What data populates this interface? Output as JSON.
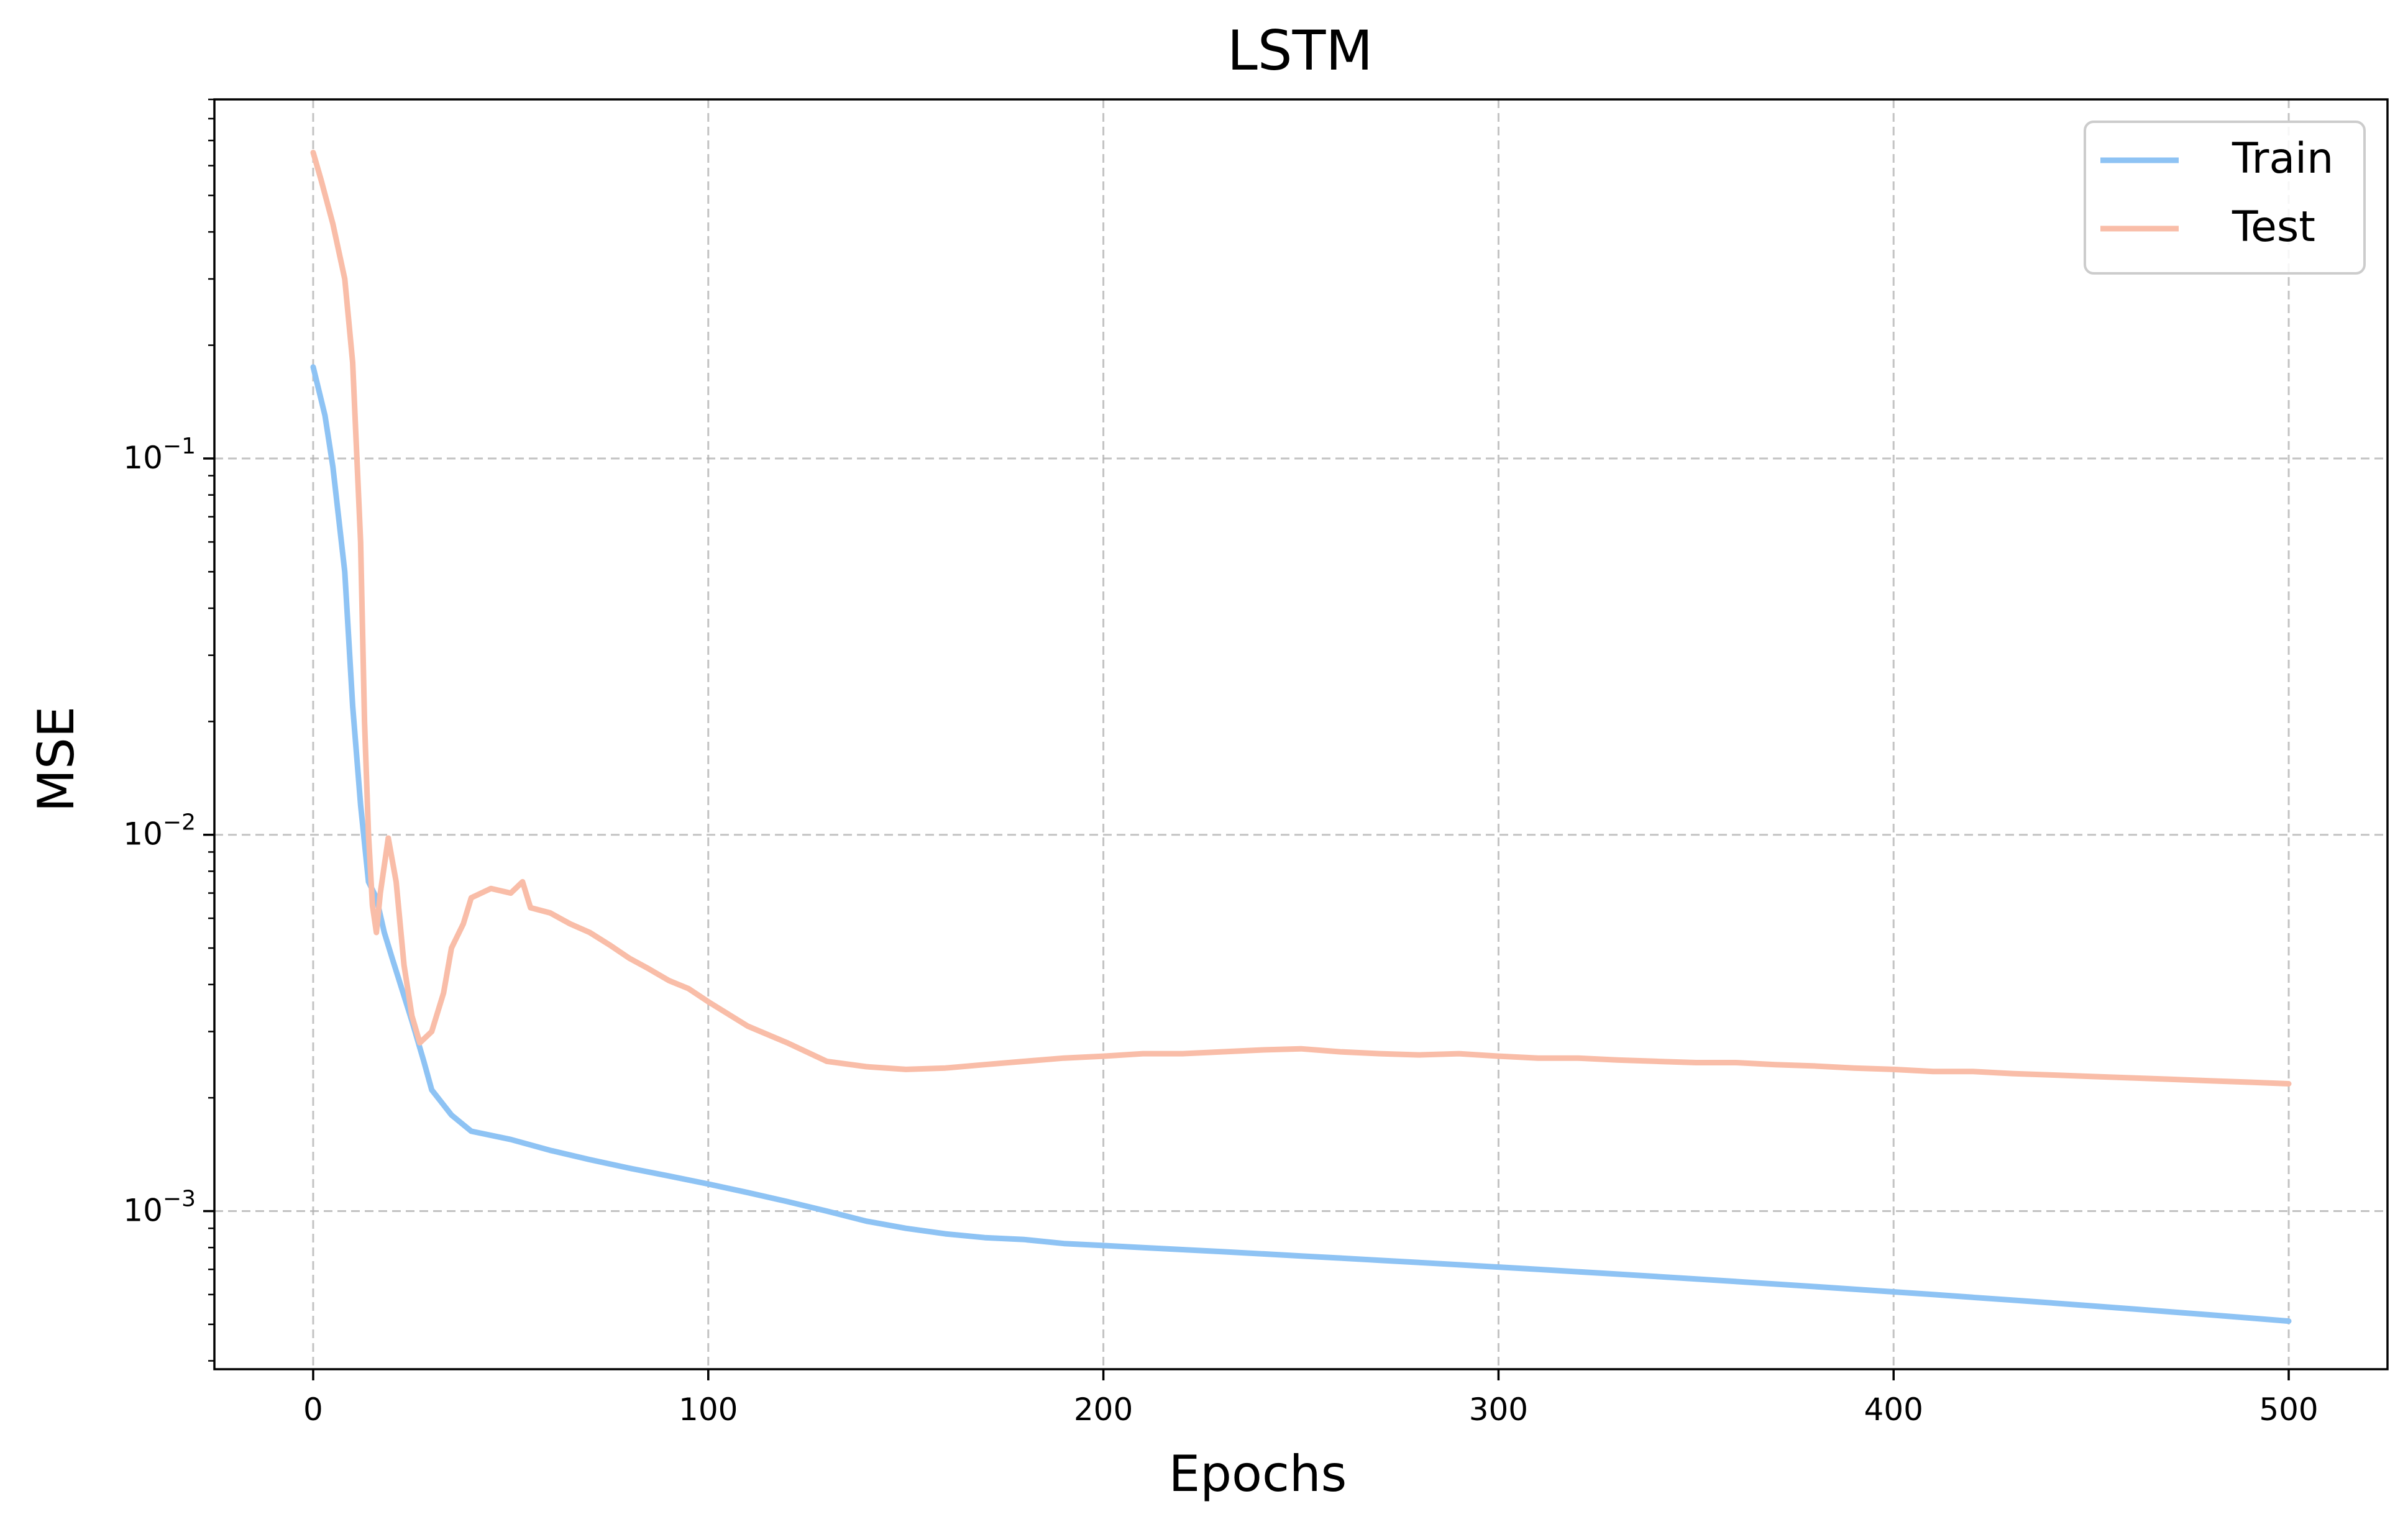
{
  "chart_data": {
    "type": "line",
    "title": "LSTM",
    "xlabel": "Epochs",
    "ylabel": "MSE",
    "xscale": "linear",
    "yscale": "log",
    "xlim": [
      -25,
      525
    ],
    "ylim": [
      0.00038,
      0.9
    ],
    "grid": true,
    "legend_position": "top-right",
    "x_ticks": [
      {
        "value": 0,
        "label": "0"
      },
      {
        "value": 100,
        "label": "100"
      },
      {
        "value": 200,
        "label": "200"
      },
      {
        "value": 300,
        "label": "300"
      },
      {
        "value": 400,
        "label": "400"
      },
      {
        "value": 500,
        "label": "500"
      }
    ],
    "y_ticks": [
      {
        "value": 0.1,
        "base": "10",
        "exp": "−1"
      },
      {
        "value": 0.01,
        "base": "10",
        "exp": "−2"
      },
      {
        "value": 0.001,
        "base": "10",
        "exp": "−3"
      }
    ],
    "series": [
      {
        "name": "Train",
        "color": "#8ec3f4",
        "x": [
          0,
          3,
          5,
          8,
          10,
          12,
          14,
          16,
          18,
          20,
          25,
          28,
          30,
          35,
          40,
          50,
          60,
          70,
          80,
          90,
          100,
          110,
          120,
          130,
          140,
          150,
          160,
          170,
          180,
          190,
          200,
          210,
          220,
          230,
          240,
          250,
          260,
          270,
          280,
          290,
          300,
          310,
          320,
          330,
          340,
          350,
          360,
          370,
          380,
          390,
          400,
          410,
          420,
          430,
          440,
          450,
          460,
          470,
          480,
          490,
          500
        ],
        "y": [
          0.175,
          0.13,
          0.095,
          0.05,
          0.022,
          0.012,
          0.0075,
          0.0068,
          0.0055,
          0.0047,
          0.0032,
          0.0025,
          0.0021,
          0.0018,
          0.00163,
          0.00155,
          0.00145,
          0.00137,
          0.0013,
          0.00124,
          0.00118,
          0.00112,
          0.00106,
          0.001,
          0.00094,
          0.0009,
          0.00087,
          0.00085,
          0.00084,
          0.00082,
          0.00081,
          0.0008,
          0.00079,
          0.00078,
          0.00077,
          0.00076,
          0.00075,
          0.00074,
          0.00073,
          0.00072,
          0.00071,
          0.0007,
          0.00069,
          0.00068,
          0.00067,
          0.00066,
          0.00065,
          0.00064,
          0.00063,
          0.00062,
          0.00061,
          0.0006,
          0.00059,
          0.00058,
          0.00057,
          0.00056,
          0.00055,
          0.00054,
          0.00053,
          0.00052,
          0.00051
        ]
      },
      {
        "name": "Test",
        "color": "#f9bda8",
        "x": [
          0,
          2,
          5,
          8,
          10,
          12,
          13,
          14,
          15,
          16,
          17,
          19,
          21,
          23,
          25,
          27,
          30,
          33,
          35,
          38,
          40,
          45,
          50,
          53,
          55,
          60,
          65,
          70,
          75,
          80,
          85,
          90,
          95,
          100,
          110,
          120,
          130,
          140,
          150,
          160,
          170,
          180,
          190,
          200,
          210,
          220,
          230,
          240,
          250,
          260,
          270,
          280,
          290,
          300,
          310,
          320,
          330,
          340,
          350,
          360,
          370,
          380,
          390,
          400,
          410,
          420,
          430,
          440,
          450,
          460,
          470,
          480,
          490,
          500
        ],
        "y": [
          0.65,
          0.55,
          0.42,
          0.3,
          0.18,
          0.06,
          0.02,
          0.01,
          0.0065,
          0.0055,
          0.007,
          0.0098,
          0.0075,
          0.0045,
          0.0033,
          0.0028,
          0.003,
          0.0038,
          0.005,
          0.0058,
          0.0068,
          0.0072,
          0.007,
          0.0075,
          0.0064,
          0.0062,
          0.0058,
          0.0055,
          0.0051,
          0.0047,
          0.0044,
          0.0041,
          0.0039,
          0.0036,
          0.0031,
          0.0028,
          0.0025,
          0.00242,
          0.00238,
          0.0024,
          0.00245,
          0.0025,
          0.00255,
          0.00258,
          0.00262,
          0.00262,
          0.00265,
          0.00268,
          0.0027,
          0.00265,
          0.00262,
          0.0026,
          0.00262,
          0.00258,
          0.00255,
          0.00255,
          0.00252,
          0.0025,
          0.00248,
          0.00248,
          0.00245,
          0.00243,
          0.0024,
          0.00238,
          0.00235,
          0.00235,
          0.00232,
          0.0023,
          0.00228,
          0.00226,
          0.00224,
          0.00222,
          0.0022,
          0.00218
        ]
      }
    ]
  }
}
